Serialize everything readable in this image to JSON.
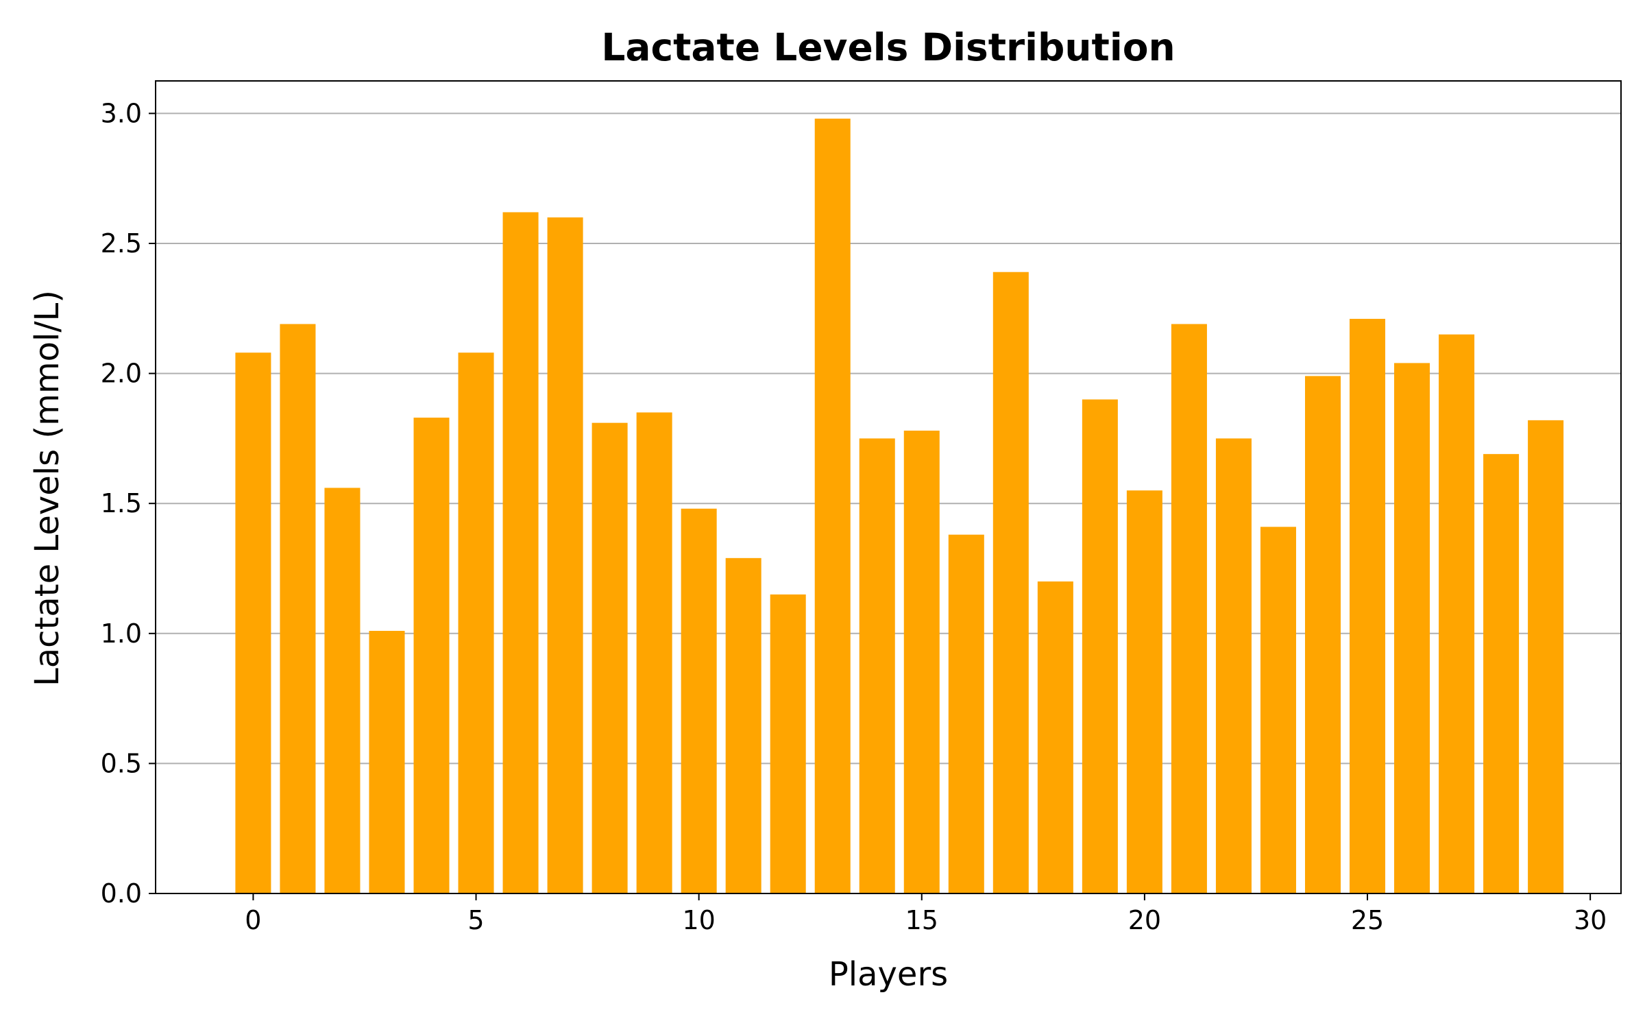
{
  "chart_data": {
    "type": "bar",
    "title": "Lactate Levels Distribution",
    "xlabel": "Players",
    "ylabel": "Lactate Levels (mmol/L)",
    "x": [
      0,
      1,
      2,
      3,
      4,
      5,
      6,
      7,
      8,
      9,
      10,
      11,
      12,
      13,
      14,
      15,
      16,
      17,
      18,
      19,
      20,
      21,
      22,
      23,
      24,
      25,
      26,
      27,
      28,
      29
    ],
    "values": [
      2.08,
      2.19,
      1.56,
      1.01,
      1.83,
      2.08,
      2.62,
      2.6,
      1.81,
      1.85,
      1.48,
      1.29,
      1.15,
      2.98,
      1.75,
      1.78,
      1.38,
      2.39,
      1.2,
      1.9,
      1.55,
      2.19,
      1.75,
      1.41,
      1.99,
      2.21,
      2.04,
      2.15,
      1.69,
      1.82
    ],
    "xlim": [
      -2.19,
      30.69
    ],
    "ylim": [
      0,
      3.125
    ],
    "xticks": [
      0,
      5,
      10,
      15,
      20,
      25,
      30
    ],
    "yticks": [
      0.0,
      0.5,
      1.0,
      1.5,
      2.0,
      2.5,
      3.0
    ],
    "xtick_labels": [
      "0",
      "5",
      "10",
      "15",
      "20",
      "25",
      "30"
    ],
    "ytick_labels": [
      "0.0",
      "0.5",
      "1.0",
      "1.5",
      "2.0",
      "2.5",
      "3.0"
    ],
    "bar_color": "#ffa500",
    "grid": "y",
    "grid_color": "#b0b0b0",
    "legend": "none"
  }
}
